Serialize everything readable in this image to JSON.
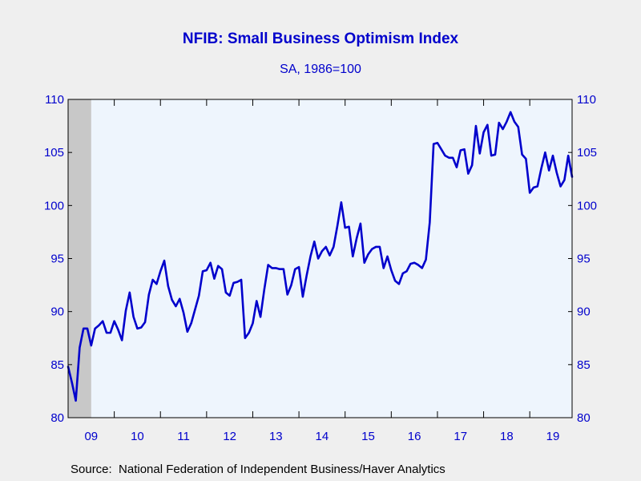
{
  "colors": {
    "background": "#efefef",
    "plot_background": "#eef5fd",
    "accent": "#0000cc",
    "line": "#0000cc",
    "recession_shade": "#c8c8c8"
  },
  "chart_data": {
    "type": "line",
    "title": "NFIB: Small Business Optimism Index",
    "subtitle": "SA, 1986=100",
    "source": "Source:  National Federation of Independent Business/Haver Analytics",
    "xlabel": "",
    "ylabel": "",
    "ylim": [
      80,
      110
    ],
    "yticks": [
      80,
      85,
      90,
      95,
      100,
      105,
      110
    ],
    "ytick_labels_left": [
      "80",
      "85",
      "90",
      "95",
      "100",
      "105",
      "110"
    ],
    "ytick_labels_right": [
      "80",
      "85",
      "90",
      "95",
      "100",
      "105",
      "110"
    ],
    "x_start": "2009-01",
    "xlim_months": [
      0,
      131
    ],
    "xtick_labels": [
      "09",
      "10",
      "11",
      "12",
      "13",
      "14",
      "15",
      "16",
      "17",
      "18",
      "19"
    ],
    "grid": false,
    "shaded_regions": [
      {
        "label": "recession",
        "start_month": 0,
        "end_month": 6
      }
    ],
    "series": [
      {
        "values": [
          84.8,
          83.3,
          81.6,
          86.6,
          88.4,
          88.4,
          86.8,
          88.4,
          88.7,
          89.1,
          88.0,
          88.0,
          89.1,
          88.3,
          87.3,
          90.1,
          91.8,
          89.5,
          88.4,
          88.5,
          89.0,
          91.6,
          93.0,
          92.6,
          93.8,
          94.8,
          92.4,
          91.1,
          90.5,
          91.2,
          89.9,
          88.1,
          88.9,
          90.2,
          91.5,
          93.8,
          93.9,
          94.6,
          93.1,
          94.3,
          94.0,
          91.8,
          91.5,
          92.7,
          92.8,
          93.0,
          87.5,
          88.0,
          88.9,
          91.0,
          89.5,
          92.1,
          94.4,
          94.1,
          94.1,
          94.0,
          94.0,
          91.6,
          92.5,
          94.0,
          94.2,
          91.4,
          93.4,
          95.2,
          96.6,
          95.0,
          95.7,
          96.1,
          95.3,
          96.1,
          98.1,
          100.3,
          97.9,
          98.0,
          95.2,
          96.9,
          98.3,
          94.6,
          95.4,
          95.9,
          96.1,
          96.1,
          94.1,
          95.2,
          93.9,
          92.9,
          92.6,
          93.6,
          93.8,
          94.5,
          94.6,
          94.4,
          94.1,
          94.9,
          98.4,
          105.8,
          105.9,
          105.3,
          104.7,
          104.5,
          104.5,
          103.6,
          105.2,
          105.3,
          103.0,
          103.8,
          107.5,
          104.9,
          106.9,
          107.6,
          104.7,
          104.8,
          107.8,
          107.2,
          107.9,
          108.8,
          107.9,
          107.4,
          104.8,
          104.4,
          101.2,
          101.7,
          101.8,
          103.5,
          105.0,
          103.3,
          104.7,
          103.1,
          101.8,
          102.4,
          104.7,
          102.7
        ]
      }
    ]
  }
}
